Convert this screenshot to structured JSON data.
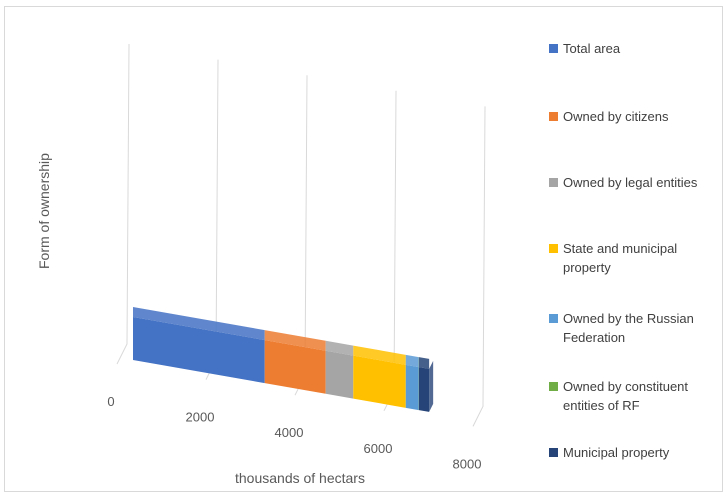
{
  "chart_data": {
    "type": "bar",
    "orientation": "horizontal-stacked-3d",
    "title": "",
    "xlabel": "thousands of hectars",
    "ylabel": "Form of ownership",
    "xlim": [
      0,
      8000
    ],
    "x_ticks": [
      "0",
      "2000",
      "4000",
      "6000",
      "8000"
    ],
    "grid": true,
    "legend_position": "right",
    "categories": [
      ""
    ],
    "series": [
      {
        "name": "Total area",
        "values": [
          2960
        ],
        "color": "#4472c4"
      },
      {
        "name": "Owned by citizens",
        "values": [
          1370
        ],
        "color": "#ed7d31"
      },
      {
        "name": "Owned by legal entities",
        "values": [
          620
        ],
        "color": "#a5a5a5"
      },
      {
        "name": "State and municipal property",
        "values": [
          1180
        ],
        "color": "#ffc000"
      },
      {
        "name": "Owned by the Russian Federation",
        "values": [
          290
        ],
        "color": "#5b9bd5"
      },
      {
        "name": "Owned by constituent entities of RF",
        "values": [
          5
        ],
        "color": "#70ad47"
      },
      {
        "name": "Municipal property",
        "values": [
          230
        ],
        "color": "#264478"
      }
    ]
  }
}
